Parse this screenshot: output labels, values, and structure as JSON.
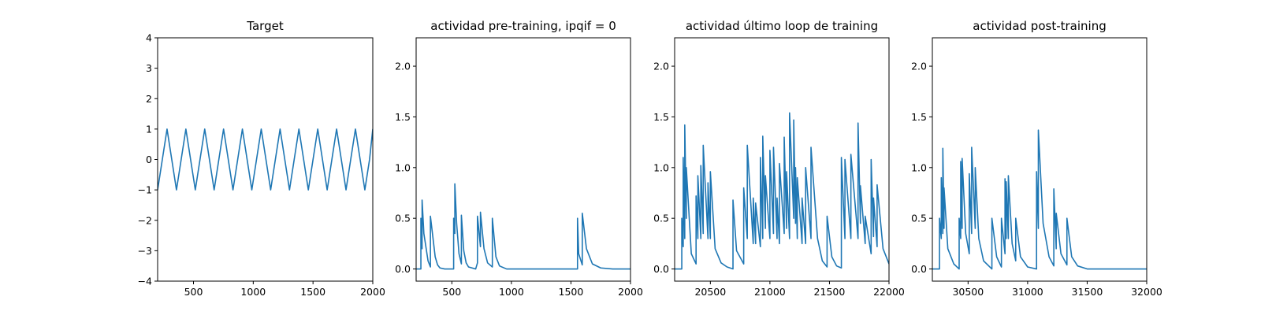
{
  "chart_data": [
    {
      "type": "line",
      "title": "Target",
      "xlabel": "",
      "ylabel": "",
      "xlim": [
        200,
        2000
      ],
      "ylim": [
        -4,
        4
      ],
      "xticks": [
        500,
        1000,
        1500,
        2000
      ],
      "yticks": [
        -4,
        -3,
        -2,
        -1,
        0,
        1,
        2,
        3,
        4
      ],
      "color": "#1f77b4",
      "series": [
        {
          "x": [
            200,
            239.4,
            278.8,
            318.2,
            357.6,
            397,
            436.4,
            475.8,
            515.2,
            554.6,
            594,
            633.4,
            672.8,
            712.2,
            751.6,
            791,
            830.4,
            869.8,
            909.2,
            948.6,
            988,
            1027.4,
            1066.8,
            1106.2,
            1145.6,
            1185,
            1224.4,
            1263.8,
            1303.2,
            1342.6,
            1382,
            1421.4,
            1460.8,
            1500.2,
            1539.6,
            1579,
            1618.4,
            1657.8,
            1697.2,
            1736.6,
            1776,
            1815.4,
            1854.8,
            1894.2,
            1933.6,
            1973,
            2000
          ],
          "y": [
            -1,
            0,
            1,
            0,
            -1,
            0,
            1,
            0,
            -1,
            0,
            1,
            0,
            -1,
            0,
            1,
            0,
            -1,
            0,
            1,
            0,
            -1,
            0,
            1,
            0,
            -1,
            0,
            1,
            0,
            -1,
            0,
            1,
            0,
            -1,
            0,
            1,
            0,
            -1,
            0,
            1,
            0,
            -1,
            0,
            1,
            0,
            -1,
            0,
            1
          ]
        }
      ]
    },
    {
      "type": "line",
      "title": "actividad pre-training, ipqif = 0",
      "xlabel": "",
      "ylabel": "",
      "xlim": [
        200,
        2000
      ],
      "ylim": [
        -0.12,
        2.28
      ],
      "xticks": [
        500,
        1000,
        1500,
        2000
      ],
      "yticks": [
        0.0,
        0.5,
        1.0,
        1.5,
        2.0
      ],
      "ytick_labels": [
        "0.0",
        "0.5",
        "1.0",
        "1.5",
        "2.0"
      ],
      "color": "#1f77b4",
      "series": [
        {
          "x": [
            200,
            240,
            240,
            250,
            250,
            265,
            300,
            320,
            320,
            360,
            380,
            400,
            440,
            500,
            515,
            515,
            525,
            525,
            540,
            560,
            580,
            580,
            600,
            620,
            640,
            700,
            715,
            715,
            740,
            740,
            770,
            800,
            840,
            840,
            870,
            900,
            960,
            1000,
            1100,
            1200,
            1300,
            1400,
            1500,
            1555,
            1555,
            1565,
            1595,
            1595,
            1630,
            1680,
            1750,
            1850,
            2000
          ],
          "y": [
            0,
            0,
            0.5,
            0.2,
            0.68,
            0.35,
            0.08,
            0.02,
            0.52,
            0.12,
            0.04,
            0.01,
            0,
            0,
            0,
            0.5,
            0.35,
            0.84,
            0.45,
            0.15,
            0.05,
            0.53,
            0.18,
            0.06,
            0.02,
            0,
            0.06,
            0.52,
            0.22,
            0.56,
            0.2,
            0.06,
            0.02,
            0.5,
            0.12,
            0.03,
            0,
            0,
            0,
            0,
            0,
            0,
            0,
            0,
            0.5,
            0.15,
            0.04,
            0.55,
            0.2,
            0.05,
            0.01,
            0,
            0
          ]
        }
      ]
    },
    {
      "type": "line",
      "title": "actividad último loop de training",
      "xlabel": "",
      "ylabel": "",
      "xlim": [
        20200,
        22000
      ],
      "ylim": [
        -0.12,
        2.28
      ],
      "xticks": [
        20500,
        21000,
        21500,
        22000
      ],
      "yticks": [
        0.0,
        0.5,
        1.0,
        1.5,
        2.0
      ],
      "ytick_labels": [
        "0.0",
        "0.5",
        "1.0",
        "1.5",
        "2.0"
      ],
      "color": "#1f77b4",
      "series": [
        {
          "x": [
            20200,
            20260,
            20260,
            20272,
            20272,
            20285,
            20285,
            20298,
            20298,
            20340,
            20380,
            20380,
            20395,
            20395,
            20420,
            20420,
            20440,
            20440,
            20480,
            20480,
            20500,
            20500,
            20540,
            20590,
            20640,
            20690,
            20690,
            20720,
            20780,
            20780,
            20810,
            20810,
            20860,
            20860,
            20880,
            20880,
            20920,
            20920,
            20940,
            20940,
            20962,
            20962,
            21000,
            21000,
            21030,
            21030,
            21060,
            21060,
            21080,
            21080,
            21120,
            21120,
            21140,
            21140,
            21165,
            21165,
            21200,
            21200,
            21215,
            21215,
            21230,
            21230,
            21270,
            21270,
            21300,
            21300,
            21345,
            21345,
            21400,
            21440,
            21480,
            21480,
            21520,
            21560,
            21600,
            21600,
            21630,
            21630,
            21680,
            21680,
            21740,
            21740,
            21760,
            21760,
            21800,
            21800,
            21850,
            21850,
            21870,
            21870,
            21900,
            21900,
            21950,
            22000
          ],
          "y": [
            0,
            0,
            0.5,
            0.22,
            1.1,
            0.3,
            1.42,
            0.5,
            1.0,
            0.15,
            0.05,
            0.72,
            0.3,
            0.92,
            0.3,
            1.02,
            0.35,
            1.22,
            0.3,
            0.85,
            0.3,
            0.96,
            0.2,
            0.06,
            0.02,
            0,
            0.68,
            0.18,
            0.05,
            0.8,
            0.3,
            1.22,
            0.25,
            0.7,
            0.25,
            0.65,
            0.22,
            1.1,
            0.3,
            1.31,
            0.4,
            0.92,
            0.3,
            1.17,
            0.35,
            1.2,
            0.3,
            0.7,
            0.25,
            1.04,
            0.35,
            1.3,
            0.4,
            0.96,
            0.3,
            1.54,
            0.5,
            1.47,
            0.45,
            1.0,
            0.3,
            0.9,
            0.25,
            0.7,
            0.25,
            1.0,
            0.3,
            1.2,
            0.3,
            0.08,
            0.02,
            0.52,
            0.12,
            0.03,
            0.01,
            1.1,
            0.3,
            1.08,
            0.3,
            1.13,
            0.3,
            1.44,
            0.45,
            0.82,
            0.25,
            0.52,
            0.15,
            1.08,
            0.32,
            0.7,
            0.22,
            0.83,
            0.2,
            0.05
          ]
        }
      ]
    },
    {
      "type": "line",
      "title": "actividad post-training",
      "xlabel": "",
      "ylabel": "",
      "xlim": [
        30200,
        32000
      ],
      "ylim": [
        -0.12,
        2.28
      ],
      "xticks": [
        30500,
        31000,
        31500,
        32000
      ],
      "yticks": [
        0.0,
        0.5,
        1.0,
        1.5,
        2.0
      ],
      "ytick_labels": [
        "0.0",
        "0.5",
        "1.0",
        "1.5",
        "2.0"
      ],
      "color": "#1f77b4",
      "series": [
        {
          "x": [
            30200,
            30260,
            30260,
            30275,
            30275,
            30288,
            30288,
            30298,
            30298,
            30330,
            30380,
            30425,
            30425,
            30438,
            30438,
            30450,
            30450,
            30480,
            30510,
            30510,
            30530,
            30530,
            30560,
            30560,
            30590,
            30630,
            30700,
            30700,
            30740,
            30780,
            30780,
            30810,
            30810,
            30820,
            30820,
            30838,
            30838,
            30870,
            30900,
            30900,
            30940,
            31000,
            31075,
            31075,
            31090,
            31090,
            31130,
            31180,
            31220,
            31220,
            31240,
            31240,
            31280,
            31330,
            31330,
            31370,
            31420,
            31500,
            31600,
            31800,
            32000
          ],
          "y": [
            0,
            0,
            0.5,
            0.3,
            0.9,
            0.35,
            1.19,
            0.4,
            0.8,
            0.2,
            0.05,
            0,
            0.5,
            0.3,
            1.06,
            0.4,
            1.09,
            0.35,
            0.15,
            0.94,
            0.35,
            1.2,
            0.4,
            1.0,
            0.3,
            0.08,
            0,
            0.5,
            0.12,
            0.02,
            0.5,
            0.15,
            0.89,
            0.3,
            0.86,
            0.3,
            0.92,
            0.25,
            0.08,
            0.5,
            0.12,
            0.02,
            0,
            0.96,
            0.4,
            1.37,
            0.45,
            0.12,
            0.03,
            0.79,
            0.2,
            0.55,
            0.15,
            0.04,
            0.5,
            0.12,
            0.03,
            0,
            0,
            0,
            0
          ]
        }
      ]
    }
  ]
}
